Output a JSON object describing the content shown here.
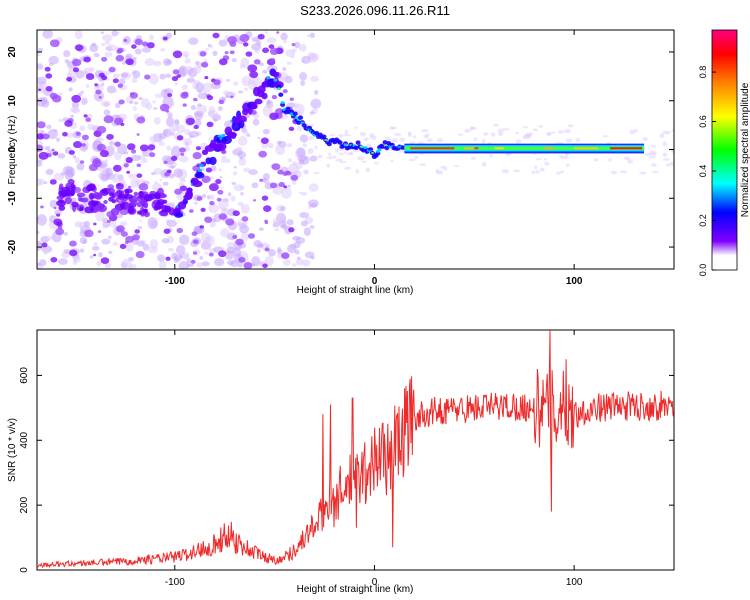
{
  "title": "S233.2026.096.11.26.R11",
  "chart_data": [
    {
      "type": "heatmap",
      "title": "S233.2026.096.11.26.R11",
      "xlabel": "Height of straight line (km)",
      "ylabel": "Frequency (Hz)",
      "xlim": [
        -169,
        150
      ],
      "ylim": [
        -24.5,
        24.5
      ],
      "xticks": [
        -100,
        0,
        100
      ],
      "yticks": [
        -20,
        -10,
        0,
        10,
        20
      ],
      "colorbar": {
        "label": "Normalized spectral amplitude",
        "range": [
          0,
          0.97
        ],
        "ticks": [
          "0.0",
          "0.2",
          "0.4",
          "0.6",
          "0.8"
        ],
        "tick_values": [
          0.0,
          0.2,
          0.4,
          0.6,
          0.8
        ]
      },
      "colormap": [
        "#ffffff",
        "#8000ff",
        "#0000ff",
        "#00ffff",
        "#00ff00",
        "#ffff00",
        "#ff8000",
        "#ff0000",
        "#ff0080"
      ],
      "ridge": {
        "x": [
          -100,
          -95,
          -90,
          -85,
          -80,
          -75,
          -70,
          -65,
          -60,
          -55,
          -50,
          -45,
          -40,
          -35,
          -30,
          -25,
          -20,
          -15,
          -10,
          -5,
          0,
          5,
          10,
          15,
          20,
          40,
          60,
          80,
          100,
          120,
          135
        ],
        "y": [
          -14,
          -10,
          -6,
          -2,
          1,
          3,
          5,
          8,
          11,
          14,
          16,
          8,
          7,
          5,
          3,
          2,
          1.5,
          1,
          0.8,
          0.5,
          -1,
          0.8,
          0.5,
          0.5,
          0.5,
          0.5,
          0.5,
          0.3,
          0.3,
          0.2,
          0.1
        ]
      }
    },
    {
      "type": "line",
      "xlabel": "Height of straight line (km)",
      "ylabel": "SNR (10 * v/v)",
      "xlim": [
        -169,
        150
      ],
      "ylim": [
        0,
        740
      ],
      "xticks": [
        -100,
        0,
        100
      ],
      "yticks": [
        0,
        200,
        400,
        600
      ],
      "series": [
        {
          "name": "SNR",
          "color": "#ee2a2a",
          "x": [
            -169,
            -150,
            -130,
            -120,
            -110,
            -100,
            -90,
            -85,
            -80,
            -75,
            -72,
            -70,
            -65,
            -60,
            -55,
            -50,
            -45,
            -40,
            -35,
            -30,
            -25,
            -22,
            -20,
            -18,
            -15,
            -10,
            -5,
            0,
            5,
            8,
            10,
            12,
            15,
            20,
            25,
            30,
            40,
            50,
            60,
            70,
            80,
            85,
            88,
            90,
            95,
            100,
            110,
            120,
            130,
            140,
            150
          ],
          "y": [
            15,
            20,
            25,
            30,
            35,
            40,
            55,
            70,
            80,
            100,
            120,
            90,
            70,
            55,
            40,
            30,
            40,
            60,
            100,
            140,
            180,
            250,
            190,
            230,
            260,
            270,
            300,
            340,
            360,
            330,
            380,
            400,
            430,
            470,
            480,
            490,
            495,
            500,
            505,
            505,
            500,
            495,
            490,
            500,
            495,
            480,
            500,
            505,
            505,
            505,
            510
          ]
        }
      ],
      "spikes": [
        {
          "x": -26,
          "y": 480
        },
        {
          "x": -22,
          "y": 510
        },
        {
          "x": -11,
          "y": 530
        },
        {
          "x": -9,
          "y": 130
        },
        {
          "x": 9,
          "y": 70
        },
        {
          "x": 15,
          "y": 560
        },
        {
          "x": 88,
          "y": 740
        },
        {
          "x": 88.5,
          "y": 180
        },
        {
          "x": 96,
          "y": 650
        }
      ]
    }
  ]
}
